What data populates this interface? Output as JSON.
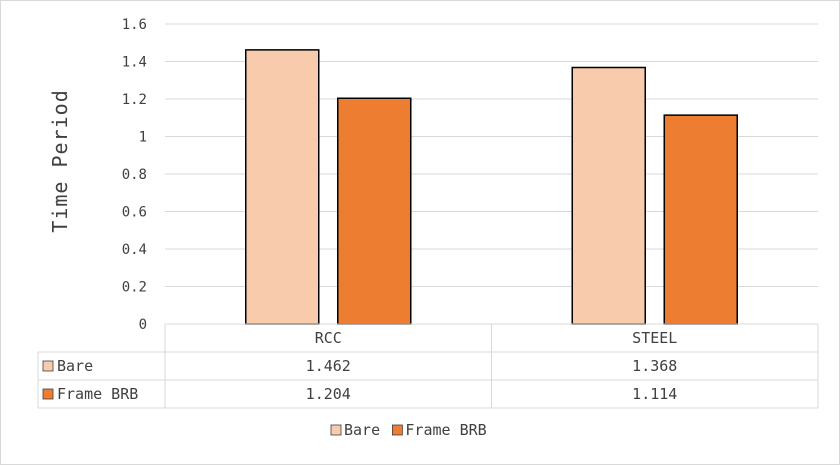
{
  "chart_data": {
    "type": "bar",
    "ylabel": "Time Period",
    "ylim": [
      0,
      1.6
    ],
    "yticks": [
      "0",
      "0.2",
      "0.4",
      "0.6",
      "0.8",
      "1",
      "1.2",
      "1.4",
      "1.6"
    ],
    "categories": [
      "RCC",
      "STEEL"
    ],
    "series": [
      {
        "name": "Bare",
        "values": [
          1.462,
          1.368
        ],
        "labels": [
          "1.462",
          "1.368"
        ],
        "color": "#F8CBAD"
      },
      {
        "name": "Frame BRB",
        "values": [
          1.204,
          1.114
        ],
        "labels": [
          "1.204",
          "1.114"
        ],
        "color": "#ED7D31"
      }
    ],
    "grid": true,
    "data_table": true,
    "legend_position": "bottom"
  }
}
